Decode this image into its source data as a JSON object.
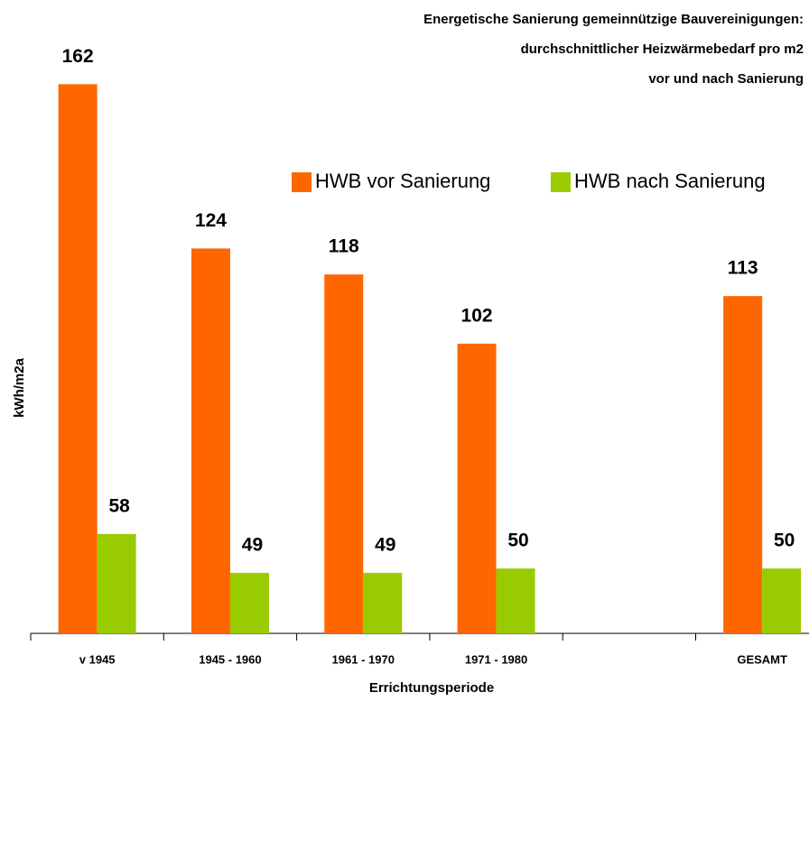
{
  "chart_data": {
    "type": "bar",
    "title": [
      "Energetische Sanierung gemeinnützige Bauvereinigungen:",
      "durchschnittlicher Heizwärmebedarf pro m2",
      "vor und nach Sanierung"
    ],
    "x_label": "Errichtungsperiode",
    "y_label": "kWh/m2a",
    "categories": [
      "v 1945",
      "1945 - 1960",
      "1961 - 1970",
      "1971 - 1980",
      null,
      "GESAMT"
    ],
    "series": [
      {
        "name": "HWB vor Sanierung",
        "color": "#ff6600",
        "values": [
          162,
          124,
          118,
          102,
          null,
          113
        ]
      },
      {
        "name": "HWB nach Sanierung",
        "color": "#99cc00",
        "values": [
          58,
          49,
          49,
          50,
          null,
          50
        ]
      }
    ],
    "ylim": [
      35,
      175
    ],
    "legend": "top-right"
  }
}
